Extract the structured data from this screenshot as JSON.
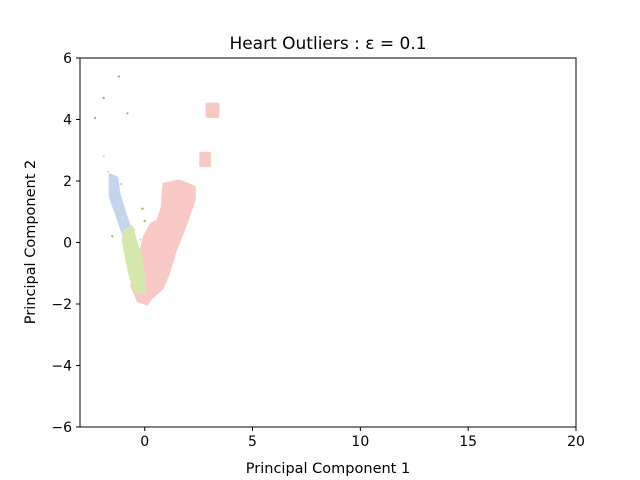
{
  "chart_data": {
    "type": "scatter",
    "title": "Heart Outliers : ε = 0.1",
    "xlabel": "Principal Component 1",
    "ylabel": "Principal Component 2",
    "xlim": [
      -3,
      20
    ],
    "ylim": [
      -6,
      6
    ],
    "x_ticks": [
      0,
      5,
      10,
      15,
      20
    ],
    "y_ticks": [
      -6,
      -4,
      -2,
      0,
      2,
      4,
      6
    ],
    "x_tick_labels": [
      "0",
      "5",
      "10",
      "15",
      "20"
    ],
    "y_tick_labels": [
      "−6",
      "−4",
      "−2",
      "0",
      "2",
      "4",
      "6"
    ],
    "grid": false,
    "series": [
      {
        "color": "#f8c8c4",
        "regions": [
          [
            [
              0.9,
              1.9
            ],
            [
              1.6,
              2.0
            ],
            [
              2.3,
              1.8
            ],
            [
              2.3,
              1.4
            ],
            [
              1.9,
              0.6
            ],
            [
              1.4,
              -0.3
            ],
            [
              1.1,
              -1.0
            ],
            [
              0.8,
              -1.5
            ],
            [
              0.3,
              -1.8
            ],
            [
              0.1,
              -2.0
            ],
            [
              -0.3,
              -1.9
            ],
            [
              -0.6,
              -1.4
            ],
            [
              -0.3,
              -0.6
            ],
            [
              0.0,
              0.2
            ],
            [
              0.3,
              0.6
            ],
            [
              0.6,
              0.7
            ],
            [
              0.8,
              1.1
            ]
          ],
          [
            [
              2.6,
              2.9
            ],
            [
              3.0,
              2.9
            ],
            [
              3.0,
              2.5
            ],
            [
              2.6,
              2.5
            ]
          ],
          [
            [
              2.9,
              4.5
            ],
            [
              3.4,
              4.5
            ],
            [
              3.4,
              4.1
            ],
            [
              2.9,
              4.1
            ]
          ]
        ],
        "points": [
          [
            0.5,
            0.5
          ],
          [
            1.3,
            1.6
          ],
          [
            2.1,
            1.7
          ],
          [
            0.2,
            -1.4
          ],
          [
            -0.2,
            -1.1
          ]
        ]
      },
      {
        "color": "#c3d4ef",
        "regions": [
          [
            [
              -1.6,
              2.2
            ],
            [
              -1.3,
              2.1
            ],
            [
              -1.2,
              1.6
            ],
            [
              -0.9,
              0.9
            ],
            [
              -0.6,
              0.3
            ],
            [
              -0.4,
              -0.1
            ],
            [
              -0.7,
              -0.1
            ],
            [
              -1.0,
              0.3
            ],
            [
              -1.3,
              0.9
            ],
            [
              -1.6,
              1.5
            ]
          ]
        ],
        "points": [
          [
            -1.1,
            1.9
          ],
          [
            -0.2,
            0.1
          ],
          [
            -0.5,
            0.4
          ]
        ]
      },
      {
        "color": "#d4e8ac",
        "regions": [
          [
            [
              -0.9,
              0.4
            ],
            [
              -0.6,
              0.5
            ],
            [
              -0.4,
              0.0
            ],
            [
              -0.1,
              -0.7
            ],
            [
              0.0,
              -1.6
            ],
            [
              -0.4,
              -1.6
            ],
            [
              -0.7,
              -1.0
            ],
            [
              -0.9,
              -0.3
            ],
            [
              -1.0,
              0.1
            ]
          ]
        ],
        "points": [
          [
            -1.9,
            2.8
          ],
          [
            -1.7,
            2.3
          ],
          [
            -1.5,
            1.9
          ],
          [
            -1.2,
            1.1
          ],
          [
            -1.0,
            0.8
          ]
        ]
      },
      {
        "color": "#8fbf6e",
        "regions": [],
        "points": [
          [
            -1.2,
            5.4
          ],
          [
            -1.9,
            4.7
          ],
          [
            -0.8,
            4.2
          ],
          [
            -2.3,
            4.05
          ],
          [
            -0.1,
            1.1
          ],
          [
            0.0,
            0.7
          ],
          [
            -1.5,
            0.2
          ]
        ]
      }
    ]
  }
}
